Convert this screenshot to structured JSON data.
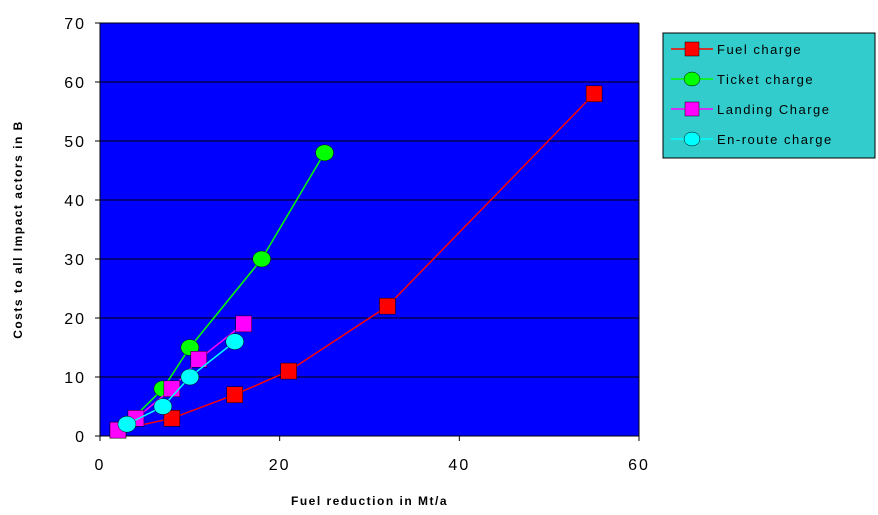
{
  "chart_data": {
    "type": "line",
    "title": "",
    "xlabel": "Fuel reduction in Mt/a",
    "ylabel": "Costs to all Impact actors in B",
    "xlim": [
      0,
      60
    ],
    "ylim": [
      0,
      70
    ],
    "x_ticks": [
      0,
      20,
      40,
      60
    ],
    "y_ticks": [
      0,
      10,
      20,
      30,
      40,
      50,
      60,
      70
    ],
    "x_tick_labels": [
      "0",
      "20",
      "40",
      "60"
    ],
    "y_tick_labels": [
      "0",
      "10",
      "20",
      "30",
      "40",
      "50",
      "60",
      "70"
    ],
    "grid": "horizontal",
    "legend_position": "top-right",
    "plot_background": "#0000FF",
    "series": [
      {
        "name": "Fuel charge",
        "color": "#FF0000",
        "marker": "square",
        "points": [
          [
            2,
            1
          ],
          [
            8,
            3
          ],
          [
            15,
            7
          ],
          [
            21,
            11
          ],
          [
            32,
            22
          ],
          [
            55,
            58
          ]
        ]
      },
      {
        "name": "Ticket charge",
        "color": "#00FF00",
        "marker": "circle",
        "points": [
          [
            3,
            2
          ],
          [
            7,
            8
          ],
          [
            10,
            15
          ],
          [
            18,
            30
          ],
          [
            25,
            48
          ]
        ]
      },
      {
        "name": "Landing Charge",
        "color": "#FF00FF",
        "marker": "square",
        "points": [
          [
            2,
            1
          ],
          [
            4,
            3
          ],
          [
            8,
            8
          ],
          [
            11,
            13
          ],
          [
            16,
            19
          ]
        ]
      },
      {
        "name": "En-route charge",
        "color": "#00FFFF",
        "marker": "circle",
        "points": [
          [
            3,
            2
          ],
          [
            7,
            5
          ],
          [
            10,
            10
          ],
          [
            15,
            16
          ]
        ]
      }
    ],
    "legend_background": "#33CCCC"
  }
}
